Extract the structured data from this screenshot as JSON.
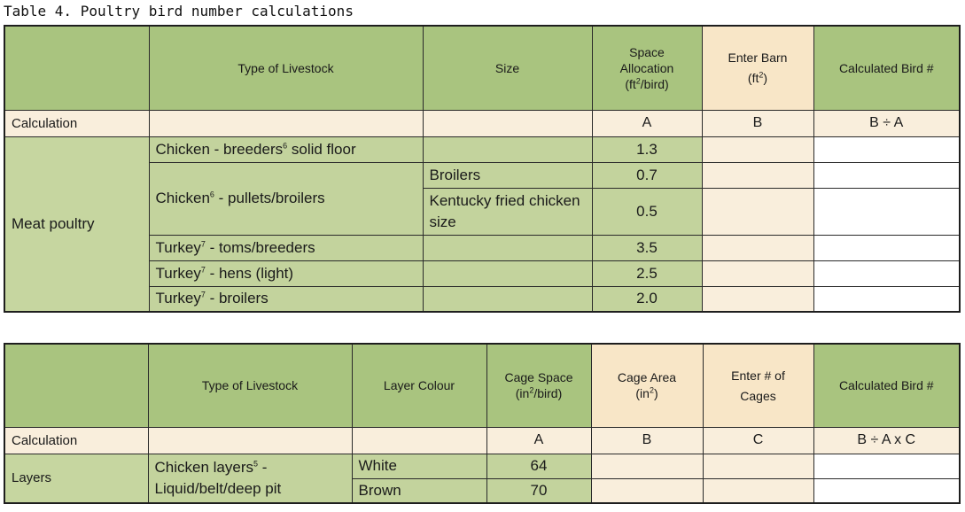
{
  "caption": "Table 4.  Poultry bird number calculations",
  "table1": {
    "headers": {
      "type": "Type of Livestock",
      "size": "Size",
      "space_l1": "Space",
      "space_l2": "Allocation",
      "space_l3_pre": "(ft",
      "space_l3_sup": "2",
      "space_l3_post": "/bird)",
      "barn_l1": "Enter Barn",
      "barn_l2_pre": "(ft",
      "barn_l2_sup": "2",
      "barn_l2_post": ")",
      "calc_bird": "Calculated Bird #"
    },
    "calc_row": {
      "label": "Calculation",
      "a": "A",
      "b": "B",
      "result": "B ÷ A"
    },
    "category": "Meat poultry",
    "rows": [
      {
        "type_pre": "Chicken - breeders",
        "type_sup": "6",
        "type_post": " solid floor",
        "size": "",
        "value": "1.3"
      },
      {
        "type_pre": "Chicken",
        "type_sup": "6",
        "type_post": " - pullets/broilers",
        "size": "Broilers",
        "value": "0.7"
      },
      {
        "size": "Kentucky fried chicken size",
        "value": "0.5"
      },
      {
        "type_pre": "Turkey",
        "type_sup": "7",
        "type_post": " - toms/breeders",
        "size": "",
        "value": "3.5"
      },
      {
        "type_pre": "Turkey",
        "type_sup": "7",
        "type_post": " - hens (light)",
        "size": "",
        "value": "2.5"
      },
      {
        "type_pre": "Turkey",
        "type_sup": "7",
        "type_post": " - broilers",
        "size": "",
        "value": "2.0"
      }
    ]
  },
  "table2": {
    "headers": {
      "type": "Type of Livestock",
      "colour": "Layer Colour",
      "cage_space_l1": "Cage Space",
      "cage_space_l2_pre": "(in",
      "cage_space_l2_sup": "2",
      "cage_space_l2_post": "/bird)",
      "cage_area_l1": "Cage Area",
      "cage_area_l2_pre": "(in",
      "cage_area_l2_sup": "2",
      "cage_area_l2_post": ")",
      "cages_l1": "Enter # of",
      "cages_l2": "Cages",
      "calc_bird": "Calculated Bird #"
    },
    "calc_row": {
      "label": "Calculation",
      "a": "A",
      "b": "B",
      "c": "C",
      "result": "B ÷ A x C"
    },
    "category": "Layers",
    "type_pre": "Chicken layers",
    "type_sup": "5",
    "type_post": " -",
    "type_line2": "Liquid/belt/deep pit",
    "rows": [
      {
        "colour": "White",
        "value": "64"
      },
      {
        "colour": "Brown",
        "value": "70"
      }
    ]
  }
}
